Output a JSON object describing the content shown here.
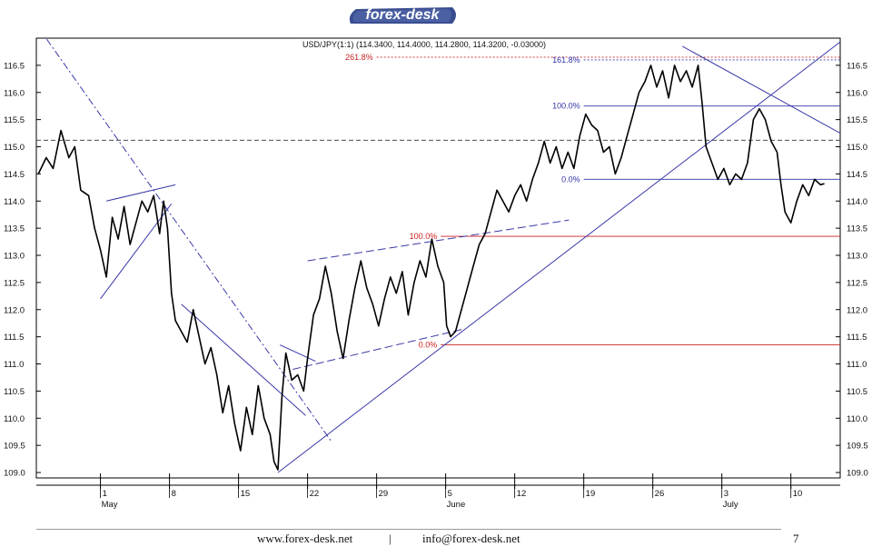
{
  "logo": {
    "text": "forex-desk"
  },
  "chart_data": {
    "type": "line",
    "title": "USD/JPY(1:1) (114.3400, 114.4000, 114.2800, 114.3200, -0.03000)",
    "ylim": [
      108.9,
      117.0
    ],
    "y_ticks": [
      "116.5",
      "116.0",
      "115.5",
      "115.0",
      "114.5",
      "114.0",
      "113.5",
      "113.0",
      "112.5",
      "112.0",
      "111.5",
      "111.0",
      "110.5",
      "110.0",
      "109.5",
      "109.0"
    ],
    "y_tick_values": [
      116.5,
      116.0,
      115.5,
      115.0,
      114.5,
      114.0,
      113.5,
      113.0,
      112.5,
      112.0,
      111.5,
      111.0,
      110.5,
      110.0,
      109.5,
      109.0
    ],
    "x_ticks": [
      {
        "label": "1",
        "day": 0
      },
      {
        "label": "8",
        "day": 7
      },
      {
        "label": "15",
        "day": 14
      },
      {
        "label": "22",
        "day": 21
      },
      {
        "label": "29",
        "day": 28
      },
      {
        "label": "5",
        "day": 35
      },
      {
        "label": "12",
        "day": 42
      },
      {
        "label": "19",
        "day": 49
      },
      {
        "label": "26",
        "day": 56
      },
      {
        "label": "3",
        "day": 63
      },
      {
        "label": "10",
        "day": 70
      }
    ],
    "month_labels": [
      {
        "label": "May",
        "day": 0
      },
      {
        "label": "June",
        "day": 35
      },
      {
        "label": "July",
        "day": 63
      }
    ],
    "xlim": [
      -6.5,
      75
    ],
    "series": [
      {
        "name": "USD/JPY",
        "points": [
          [
            -6.3,
            114.5
          ],
          [
            -5.5,
            114.8
          ],
          [
            -4.8,
            114.6
          ],
          [
            -4.0,
            115.3
          ],
          [
            -3.2,
            114.8
          ],
          [
            -2.6,
            115.0
          ],
          [
            -2.0,
            114.2
          ],
          [
            -1.2,
            114.1
          ],
          [
            -0.6,
            113.5
          ],
          [
            0.0,
            113.1
          ],
          [
            0.6,
            112.6
          ],
          [
            1.2,
            113.7
          ],
          [
            1.8,
            113.3
          ],
          [
            2.4,
            113.9
          ],
          [
            3.0,
            113.2
          ],
          [
            3.6,
            113.6
          ],
          [
            4.2,
            114.0
          ],
          [
            4.8,
            113.8
          ],
          [
            5.4,
            114.1
          ],
          [
            6.0,
            113.4
          ],
          [
            6.4,
            114.0
          ],
          [
            6.8,
            113.5
          ],
          [
            7.2,
            112.3
          ],
          [
            7.6,
            111.8
          ],
          [
            8.2,
            111.6
          ],
          [
            8.8,
            111.4
          ],
          [
            9.4,
            112.0
          ],
          [
            10.0,
            111.5
          ],
          [
            10.6,
            111.0
          ],
          [
            11.2,
            111.3
          ],
          [
            11.8,
            110.8
          ],
          [
            12.4,
            110.1
          ],
          [
            13.0,
            110.6
          ],
          [
            13.6,
            109.9
          ],
          [
            14.2,
            109.4
          ],
          [
            14.8,
            110.2
          ],
          [
            15.4,
            109.7
          ],
          [
            16.0,
            110.6
          ],
          [
            16.6,
            110.0
          ],
          [
            17.2,
            109.7
          ],
          [
            17.6,
            109.2
          ],
          [
            18.0,
            109.05
          ],
          [
            18.4,
            110.4
          ],
          [
            18.8,
            111.2
          ],
          [
            19.4,
            110.7
          ],
          [
            20.0,
            110.8
          ],
          [
            20.6,
            110.5
          ],
          [
            21.0,
            111.1
          ],
          [
            21.6,
            111.9
          ],
          [
            22.2,
            112.2
          ],
          [
            22.8,
            112.8
          ],
          [
            23.4,
            112.3
          ],
          [
            24.0,
            111.6
          ],
          [
            24.6,
            111.1
          ],
          [
            25.2,
            111.8
          ],
          [
            25.8,
            112.4
          ],
          [
            26.4,
            112.9
          ],
          [
            27.0,
            112.4
          ],
          [
            27.6,
            112.1
          ],
          [
            28.2,
            111.7
          ],
          [
            28.8,
            112.2
          ],
          [
            29.4,
            112.6
          ],
          [
            30.0,
            112.3
          ],
          [
            30.6,
            112.7
          ],
          [
            31.2,
            111.9
          ],
          [
            31.8,
            112.5
          ],
          [
            32.4,
            112.9
          ],
          [
            33.0,
            112.6
          ],
          [
            33.6,
            113.3
          ],
          [
            34.2,
            112.8
          ],
          [
            34.8,
            112.5
          ],
          [
            35.1,
            111.7
          ],
          [
            35.5,
            111.5
          ],
          [
            36.0,
            111.6
          ],
          [
            36.6,
            112.0
          ],
          [
            37.2,
            112.4
          ],
          [
            37.8,
            112.8
          ],
          [
            38.4,
            113.2
          ],
          [
            39.0,
            113.4
          ],
          [
            39.6,
            113.8
          ],
          [
            40.2,
            114.2
          ],
          [
            40.8,
            114.0
          ],
          [
            41.4,
            113.8
          ],
          [
            42.0,
            114.1
          ],
          [
            42.6,
            114.3
          ],
          [
            43.2,
            114.0
          ],
          [
            43.8,
            114.4
          ],
          [
            44.4,
            114.7
          ],
          [
            45.0,
            115.1
          ],
          [
            45.6,
            114.7
          ],
          [
            46.2,
            115.0
          ],
          [
            46.8,
            114.6
          ],
          [
            47.4,
            114.9
          ],
          [
            48.0,
            114.6
          ],
          [
            48.6,
            115.2
          ],
          [
            49.2,
            115.6
          ],
          [
            49.8,
            115.4
          ],
          [
            50.4,
            115.3
          ],
          [
            51.0,
            114.9
          ],
          [
            51.6,
            115.0
          ],
          [
            52.2,
            114.5
          ],
          [
            52.8,
            114.8
          ],
          [
            53.4,
            115.2
          ],
          [
            54.0,
            115.6
          ],
          [
            54.6,
            116.0
          ],
          [
            55.2,
            116.2
          ],
          [
            55.8,
            116.5
          ],
          [
            56.4,
            116.1
          ],
          [
            57.0,
            116.4
          ],
          [
            57.6,
            115.9
          ],
          [
            58.2,
            116.5
          ],
          [
            58.8,
            116.2
          ],
          [
            59.4,
            116.4
          ],
          [
            60.0,
            116.1
          ],
          [
            60.6,
            116.5
          ],
          [
            61.0,
            115.8
          ],
          [
            61.4,
            115.0
          ],
          [
            62.0,
            114.7
          ],
          [
            62.6,
            114.4
          ],
          [
            63.2,
            114.6
          ],
          [
            63.8,
            114.3
          ],
          [
            64.4,
            114.5
          ],
          [
            65.0,
            114.4
          ],
          [
            65.6,
            114.7
          ],
          [
            66.2,
            115.5
          ],
          [
            66.8,
            115.7
          ],
          [
            67.4,
            115.5
          ],
          [
            68.0,
            115.1
          ],
          [
            68.6,
            114.9
          ],
          [
            69.0,
            114.3
          ],
          [
            69.4,
            113.8
          ],
          [
            70.0,
            113.6
          ],
          [
            70.6,
            114.0
          ],
          [
            71.2,
            114.3
          ],
          [
            71.8,
            114.1
          ],
          [
            72.4,
            114.4
          ],
          [
            73.0,
            114.3
          ],
          [
            73.4,
            114.32
          ]
        ]
      }
    ],
    "trendlines": [
      {
        "style": "dashdot",
        "p1": [
          -6.3,
          117.2
        ],
        "p2": [
          23.5,
          109.55
        ]
      },
      {
        "style": "solid",
        "p1": [
          0.0,
          112.2
        ],
        "p2": [
          7.2,
          113.95
        ]
      },
      {
        "style": "solid",
        "p1": [
          0.6,
          114.0
        ],
        "p2": [
          7.6,
          114.3
        ]
      },
      {
        "style": "solid",
        "p1": [
          8.2,
          112.1
        ],
        "p2": [
          20.8,
          110.05
        ]
      },
      {
        "style": "solid",
        "p1": [
          18.2,
          111.35
        ],
        "p2": [
          21.8,
          111.05
        ]
      },
      {
        "style": "dashdash",
        "p1": [
          19.5,
          110.9
        ],
        "p2": [
          37.0,
          111.65
        ]
      },
      {
        "style": "dashdash",
        "p1": [
          21.0,
          112.9
        ],
        "p2": [
          47.5,
          113.65
        ]
      },
      {
        "style": "solid",
        "p1": [
          18.0,
          109.0
        ],
        "p2": [
          75.5,
          117.0
        ]
      },
      {
        "style": "solid",
        "p1": [
          59.0,
          116.85
        ],
        "p2": [
          75.5,
          115.2
        ]
      }
    ],
    "horizontal_levels": [
      {
        "label": "261.8%",
        "value": 116.65,
        "color": "#cc2222",
        "style": "dotted",
        "from_day": 28.0
      },
      {
        "label": "161.8%",
        "value": 116.6,
        "color": "#3333aa",
        "style": "dotted",
        "from_day": 49.0
      },
      {
        "label": "100.0%",
        "value": 115.75,
        "color": "#3333aa",
        "style": "solid",
        "from_day": 49.0
      },
      {
        "label": "0.0%",
        "value": 114.4,
        "color": "#3333aa",
        "style": "solid",
        "from_day": 49.0
      },
      {
        "label": "100.0%",
        "value": 113.35,
        "color": "#cc2222",
        "style": "solid",
        "from_day": 34.5
      },
      {
        "label": "0.0%",
        "value": 111.35,
        "color": "#cc2222",
        "style": "solid",
        "from_day": 34.5
      },
      {
        "label": "",
        "value": 115.12,
        "color": "#333333",
        "style": "dashed",
        "from_day": -6.5
      }
    ]
  },
  "footer": {
    "website": "www.forex-desk.net",
    "separator": "|",
    "email": "info@forex-desk.net",
    "page_number": "7"
  }
}
